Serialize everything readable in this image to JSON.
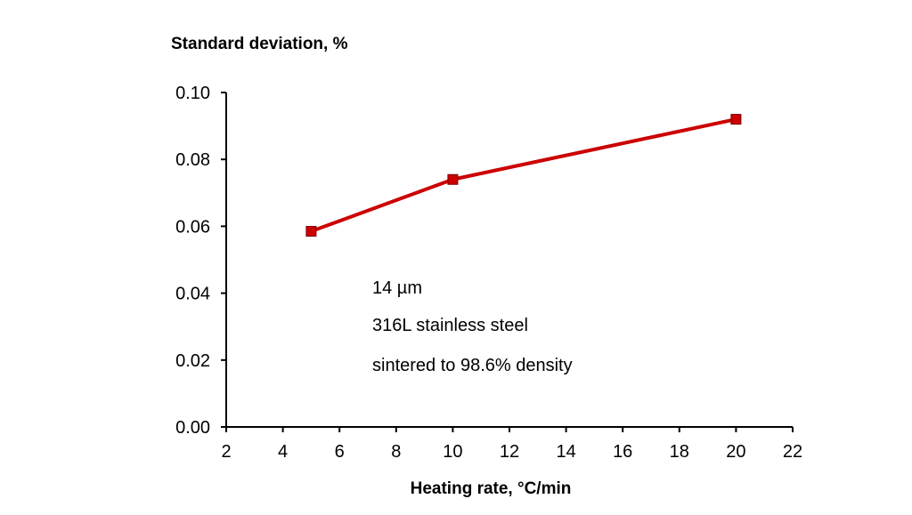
{
  "chart_data": {
    "type": "line",
    "ylabel": "Standard deviation, %",
    "xlabel": "Heating rate, °C/min",
    "xlim": [
      2,
      22
    ],
    "ylim": [
      0.0,
      0.1
    ],
    "x_ticks": [
      "2",
      "4",
      "6",
      "8",
      "10",
      "12",
      "14",
      "16",
      "18",
      "20",
      "22"
    ],
    "y_ticks": [
      "0.00",
      "0.02",
      "0.04",
      "0.06",
      "0.08",
      "0.10"
    ],
    "grid": false,
    "series": [
      {
        "x": [
          5,
          10,
          20
        ],
        "y": [
          0.0585,
          0.074,
          0.092
        ],
        "color": "#cc0000",
        "marker": "square"
      }
    ],
    "annotations": [
      "14 µm",
      "316L stainless steel",
      "sintered to 98.6% density"
    ]
  }
}
